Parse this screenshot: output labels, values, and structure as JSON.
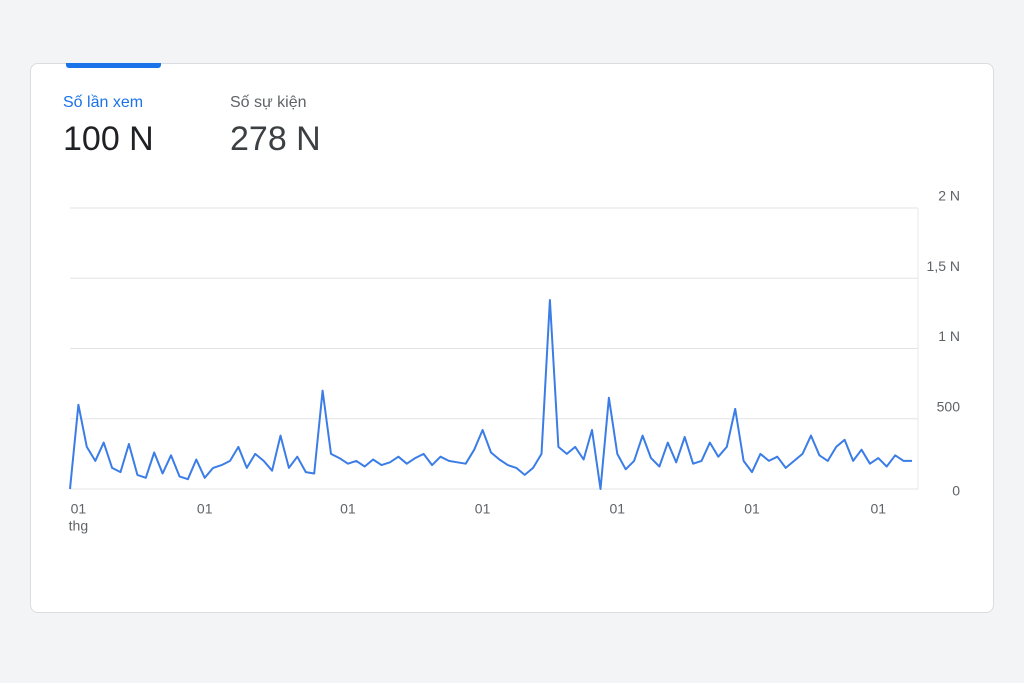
{
  "tabs": [
    {
      "label": "Số lần xem",
      "value": "100 N"
    },
    {
      "label": "Số sự kiện",
      "value": "278 N"
    }
  ],
  "chart_data": {
    "type": "line",
    "color": "#3b7de6",
    "grid": true,
    "xlabel": "thg",
    "categories": [
      null,
      "01",
      null,
      null,
      null,
      null,
      null,
      null,
      null,
      null,
      null,
      null,
      null,
      null,
      null,
      null,
      "01",
      null,
      null,
      null,
      null,
      null,
      null,
      null,
      null,
      null,
      null,
      null,
      null,
      null,
      null,
      null,
      null,
      "01",
      null,
      null,
      null,
      null,
      null,
      null,
      null,
      null,
      null,
      null,
      null,
      null,
      null,
      null,
      null,
      "01",
      null,
      null,
      null,
      null,
      null,
      null,
      null,
      null,
      null,
      null,
      null,
      null,
      null,
      null,
      null,
      "01",
      null,
      null,
      null,
      null,
      null,
      null,
      null,
      null,
      null,
      null,
      null,
      null,
      null,
      null,
      null,
      "01",
      null,
      null,
      null,
      null,
      null,
      null,
      null,
      null,
      null,
      null,
      null,
      null,
      null,
      null,
      "01",
      null,
      null,
      null,
      null
    ],
    "values": [
      0,
      600,
      300,
      200,
      330,
      150,
      120,
      320,
      100,
      80,
      260,
      110,
      240,
      90,
      70,
      210,
      80,
      150,
      170,
      200,
      300,
      150,
      250,
      200,
      130,
      380,
      150,
      230,
      120,
      110,
      700,
      250,
      220,
      180,
      200,
      160,
      210,
      170,
      190,
      230,
      180,
      220,
      250,
      170,
      230,
      200,
      190,
      180,
      280,
      420,
      260,
      210,
      170,
      150,
      100,
      150,
      250,
      1345,
      300,
      250,
      300,
      210,
      420,
      0,
      650,
      250,
      140,
      200,
      380,
      220,
      160,
      330,
      190,
      370,
      180,
      200,
      330,
      230,
      300,
      570,
      200,
      120,
      250,
      200,
      230,
      150,
      200,
      250,
      380,
      240,
      200,
      300,
      350,
      200,
      280,
      180,
      220,
      160,
      240,
      200,
      200
    ],
    "ylim": [
      0,
      2000
    ],
    "yticks": [
      0,
      500,
      {
        "value": 1000,
        "label": "1 N"
      },
      {
        "value": 1500,
        "label": "1,5 N"
      },
      {
        "value": 2000,
        "label": "2 N"
      }
    ]
  }
}
